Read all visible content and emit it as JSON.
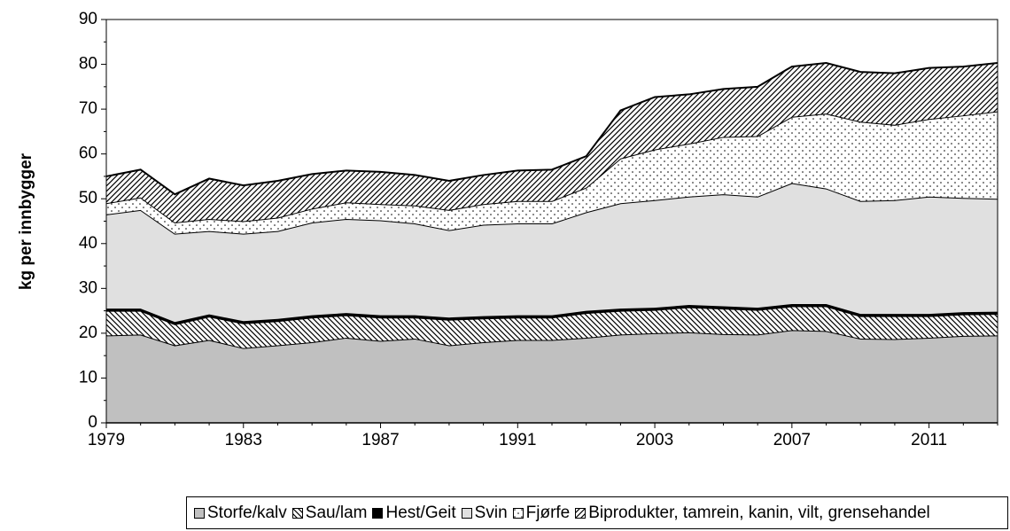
{
  "chart_data": {
    "type": "stacked-area",
    "y_label": "kg per innbygger",
    "categories": [
      "1979",
      null,
      null,
      null,
      "1983",
      null,
      null,
      null,
      "1987",
      null,
      null,
      null,
      "1991",
      null,
      null,
      null,
      "2003",
      null,
      null,
      null,
      "2007",
      null,
      null,
      null,
      "2011",
      null,
      null
    ],
    "series": [
      {
        "name": "Storfe/kalv",
        "color": "#c0c0c0",
        "pattern": "solid",
        "values": [
          19.5,
          19.7,
          17.3,
          18.5,
          16.7,
          17.3,
          18.0,
          19.0,
          18.3,
          18.8,
          17.3,
          18.0,
          18.5,
          18.5,
          19.0,
          19.7,
          20.0,
          20.2,
          19.8,
          19.7,
          20.7,
          20.5,
          18.8,
          18.7,
          19.0,
          19.4,
          19.5
        ]
      },
      {
        "name": "Sau/lam",
        "color": "#000000",
        "pattern": "hatch-back",
        "values": [
          5.5,
          5.3,
          4.7,
          5.2,
          5.5,
          5.4,
          5.5,
          5.0,
          5.2,
          4.7,
          5.7,
          5.3,
          5.0,
          5.0,
          5.5,
          5.3,
          5.2,
          5.6,
          5.7,
          5.5,
          5.3,
          5.5,
          5.0,
          5.1,
          4.8,
          4.8,
          4.8
        ]
      },
      {
        "name": "Hest/Geit",
        "color": "#000000",
        "pattern": "solid",
        "values": [
          0.5,
          0.5,
          0.5,
          0.5,
          0.5,
          0.5,
          0.5,
          0.5,
          0.5,
          0.5,
          0.5,
          0.5,
          0.5,
          0.5,
          0.5,
          0.5,
          0.5,
          0.5,
          0.5,
          0.5,
          0.5,
          0.5,
          0.5,
          0.5,
          0.5,
          0.5,
          0.5
        ]
      },
      {
        "name": "Svin",
        "color": "#e0e0e0",
        "pattern": "solid",
        "values": [
          21.0,
          22.0,
          19.7,
          18.6,
          19.5,
          19.6,
          20.7,
          21.0,
          21.2,
          20.5,
          19.5,
          20.4,
          20.5,
          20.5,
          22.0,
          23.5,
          24.0,
          24.2,
          25.0,
          24.8,
          27.0,
          25.8,
          25.2,
          25.4,
          26.2,
          25.5,
          25.2
        ]
      },
      {
        "name": "Fjørfe",
        "color": "#000000",
        "pattern": "dots",
        "values": [
          2.5,
          2.8,
          2.5,
          2.7,
          2.8,
          3.0,
          3.1,
          3.7,
          3.6,
          4.0,
          4.5,
          4.6,
          5.0,
          5.0,
          5.5,
          10.0,
          11.3,
          11.8,
          12.8,
          13.5,
          14.8,
          16.7,
          17.7,
          16.8,
          17.3,
          18.4,
          19.5
        ]
      },
      {
        "name": "Biprodukter, tamrein, kanin, vilt, grensehandel",
        "color": "#000000",
        "pattern": "hatch-forward",
        "values": [
          6.0,
          6.2,
          6.3,
          9.0,
          8.0,
          8.2,
          7.7,
          7.1,
          7.2,
          6.8,
          6.5,
          6.5,
          6.8,
          7.0,
          7.0,
          10.7,
          11.7,
          11.0,
          10.7,
          11.0,
          11.2,
          11.3,
          11.1,
          11.5,
          11.4,
          10.9,
          10.8
        ]
      }
    ],
    "ylim": [
      0,
      90
    ],
    "yticks": [
      0,
      10,
      20,
      30,
      40,
      50,
      60,
      70,
      80,
      90
    ]
  }
}
